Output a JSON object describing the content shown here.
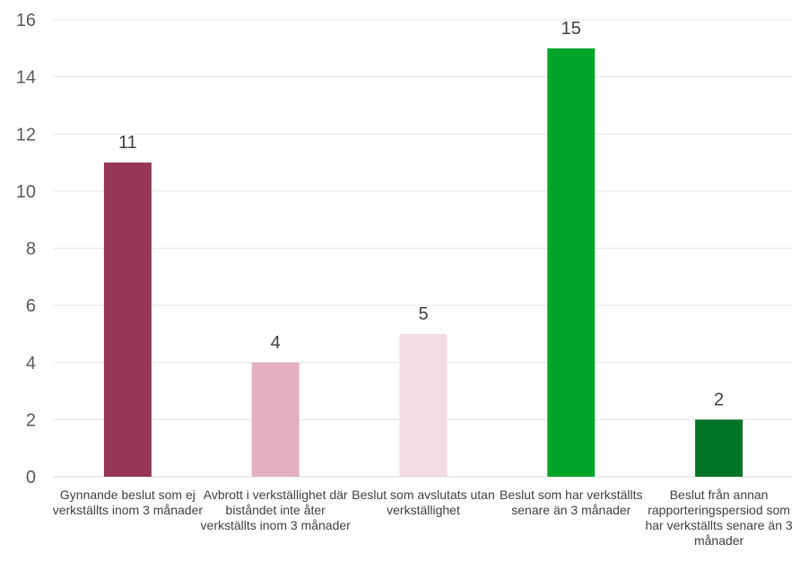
{
  "chart_data": {
    "type": "bar",
    "categories": [
      "Gynnande beslut som ej verkställts inom 3 månader",
      "Avbrott i verkställighet där biståndet inte åter verkställts inom 3 månader",
      "Beslut som avslutats utan verkställighet",
      "Beslut som har verkställts senare än 3 månader",
      "Beslut från annan rapporteringspersiod som har verkställts senare än 3 månader"
    ],
    "values": [
      11,
      4,
      5,
      15,
      2
    ],
    "colors": [
      "#963554",
      "#E2B0C2",
      "#F3DDE4",
      "#00A52A",
      "#007327"
    ],
    "ylim": [
      0,
      16
    ],
    "yticks": [
      0,
      2,
      4,
      6,
      8,
      10,
      12,
      14,
      16
    ],
    "grid": true,
    "title": "",
    "xlabel": "",
    "ylabel": ""
  }
}
